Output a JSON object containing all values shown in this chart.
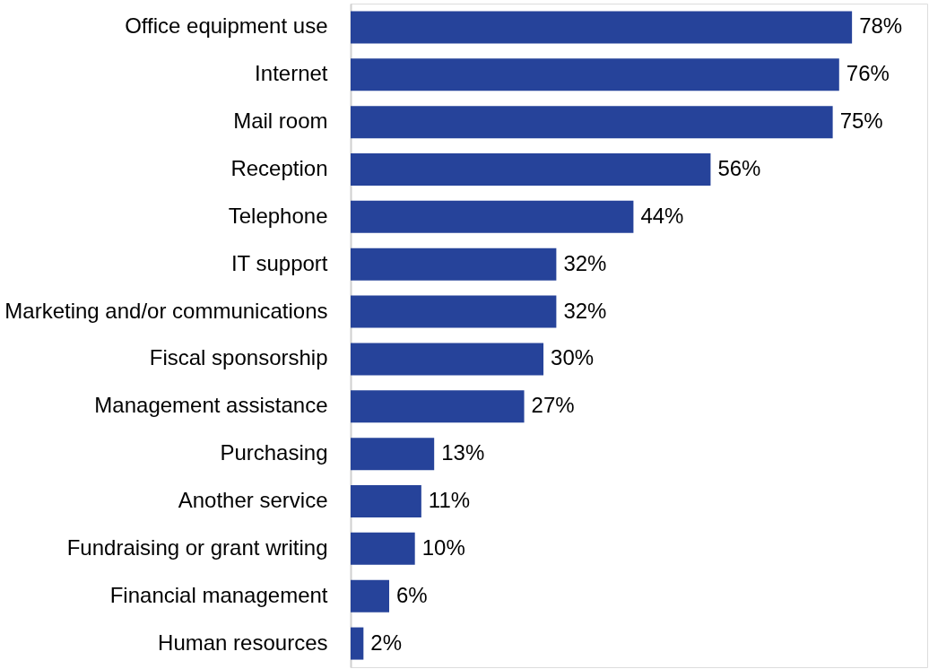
{
  "chart_data": {
    "type": "bar",
    "orientation": "horizontal",
    "color": "#26439a",
    "categories": [
      "Office equipment use",
      "Internet",
      "Mail room",
      "Reception",
      "Telephone",
      "IT support",
      "Marketing and/or communications",
      "Fiscal sponsorship",
      "Management assistance",
      "Purchasing",
      "Another service",
      "Fundraising or grant writing",
      "Financial management",
      "Human resources"
    ],
    "values": [
      78,
      76,
      75,
      56,
      44,
      32,
      32,
      30,
      27,
      13,
      11,
      10,
      6,
      2
    ],
    "value_labels": [
      "78%",
      "76%",
      "75%",
      "56%",
      "44%",
      "32%",
      "32%",
      "30%",
      "27%",
      "13%",
      "11%",
      "10%",
      "6%",
      "2%"
    ]
  }
}
